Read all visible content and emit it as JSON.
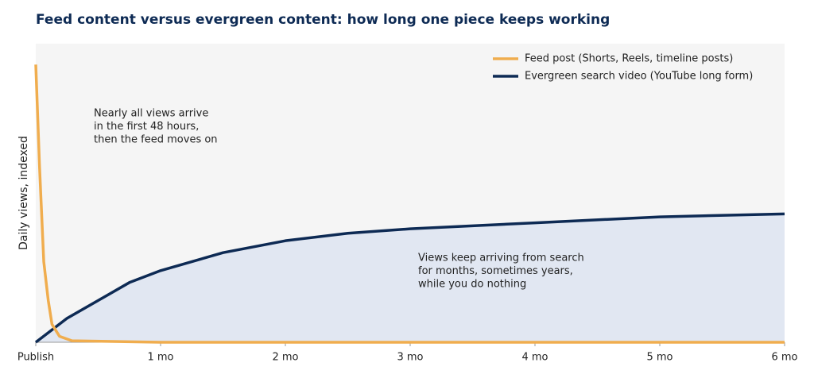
{
  "chart_data": {
    "type": "line",
    "title": "Feed content versus evergreen content: how long one piece keeps working",
    "y_label": "Daily views, indexed",
    "xlim": [
      0,
      6
    ],
    "ylim": [
      0,
      100
    ],
    "xticks": [
      {
        "value": 0,
        "label": "Publish"
      },
      {
        "value": 1,
        "label": "1 mo"
      },
      {
        "value": 2,
        "label": "2 mo"
      },
      {
        "value": 3,
        "label": "3 mo"
      },
      {
        "value": 4,
        "label": "4 mo"
      },
      {
        "value": 5,
        "label": "5 mo"
      },
      {
        "value": 6,
        "label": "6 mo"
      }
    ],
    "legend": "upper right",
    "series": [
      {
        "name": "Feed post (Shorts, Reels, timeline posts)",
        "color": "#f0ad4e",
        "x": [
          0,
          0.03,
          0.064,
          0.1,
          0.13,
          0.19,
          0.29,
          1,
          2,
          3,
          4,
          5,
          6
        ],
        "values": [
          93,
          59,
          27,
          14,
          6,
          2,
          0.5,
          0,
          0,
          0,
          0,
          0,
          0
        ]
      },
      {
        "name": "Evergreen search video (YouTube long form)",
        "color": "#0d2a54",
        "fill": "#e1e7f2",
        "x": [
          0,
          0.25,
          0.5,
          0.75,
          1,
          1.5,
          2,
          2.5,
          3,
          4,
          5,
          6
        ],
        "values": [
          0,
          8,
          14,
          20,
          24,
          30,
          34,
          36.5,
          38,
          40,
          42,
          43
        ]
      }
    ],
    "annotations": [
      {
        "lines": [
          "Nearly all views arrive",
          "in the first 48 hours,",
          "then the feed moves on"
        ]
      },
      {
        "lines": [
          "Views keep arriving from search",
          "for months, sometimes years,",
          "while you do nothing"
        ]
      }
    ]
  }
}
